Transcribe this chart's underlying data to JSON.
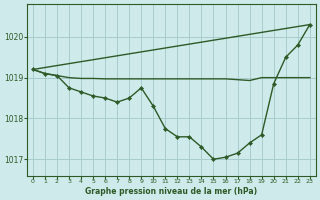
{
  "title": "Graphe pression niveau de la mer (hPa)",
  "bg_color": "#ceeaea",
  "grid_color": "#a8cccc",
  "line_color": "#2d5a27",
  "xlim": [
    -0.5,
    23.5
  ],
  "ylim": [
    1016.6,
    1020.8
  ],
  "yticks": [
    1017,
    1018,
    1019,
    1020
  ],
  "xticks": [
    0,
    1,
    2,
    3,
    4,
    5,
    6,
    7,
    8,
    9,
    10,
    11,
    12,
    13,
    14,
    15,
    16,
    17,
    18,
    19,
    20,
    21,
    22,
    23
  ],
  "series1_x": [
    0,
    1,
    2,
    3,
    4,
    5,
    6,
    7,
    8,
    9,
    10,
    11,
    12,
    13,
    14,
    15,
    16,
    17,
    18,
    19,
    20,
    21,
    22,
    23
  ],
  "series1_y": [
    1019.2,
    1019.1,
    1019.05,
    1018.75,
    1018.65,
    1018.55,
    1018.5,
    1018.4,
    1018.5,
    1018.75,
    1018.3,
    1017.75,
    1017.55,
    1017.55,
    1017.3,
    1017.0,
    1017.05,
    1017.15,
    1017.4,
    1017.6,
    1018.85,
    1019.5,
    1019.8,
    1020.3
  ],
  "series2_x": [
    0,
    1,
    2,
    3,
    4,
    5,
    6,
    7,
    8,
    9,
    10,
    11,
    12,
    13,
    14,
    15,
    16,
    17,
    18,
    19,
    20,
    21,
    22,
    23
  ],
  "series2_y": [
    1019.2,
    1019.1,
    1019.05,
    1019.0,
    1018.98,
    1018.98,
    1018.97,
    1018.97,
    1018.97,
    1018.97,
    1018.97,
    1018.97,
    1018.97,
    1018.97,
    1018.97,
    1018.97,
    1018.97,
    1018.95,
    1018.93,
    1019.0,
    1019.0,
    1019.0,
    1019.0,
    1019.0
  ],
  "series3_x": [
    0,
    23
  ],
  "series3_y": [
    1019.2,
    1020.3
  ]
}
